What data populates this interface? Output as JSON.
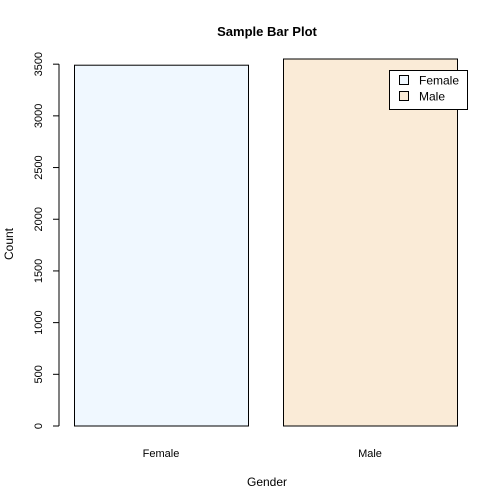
{
  "chart_data": {
    "type": "bar",
    "title": "Sample Bar Plot",
    "xlabel": "Gender",
    "ylabel": "Count",
    "categories": [
      "Female",
      "Male"
    ],
    "values": [
      3490,
      3550
    ],
    "colors": [
      "#F0F8FF",
      "#FAEBD7"
    ],
    "border_color": "#000000",
    "ylim": [
      0,
      3550
    ],
    "yticks": [
      0,
      500,
      1000,
      1500,
      2000,
      2500,
      3000,
      3500
    ],
    "grid": false,
    "legend": {
      "position": "top-right",
      "entries": [
        "Female",
        "Male"
      ]
    }
  }
}
